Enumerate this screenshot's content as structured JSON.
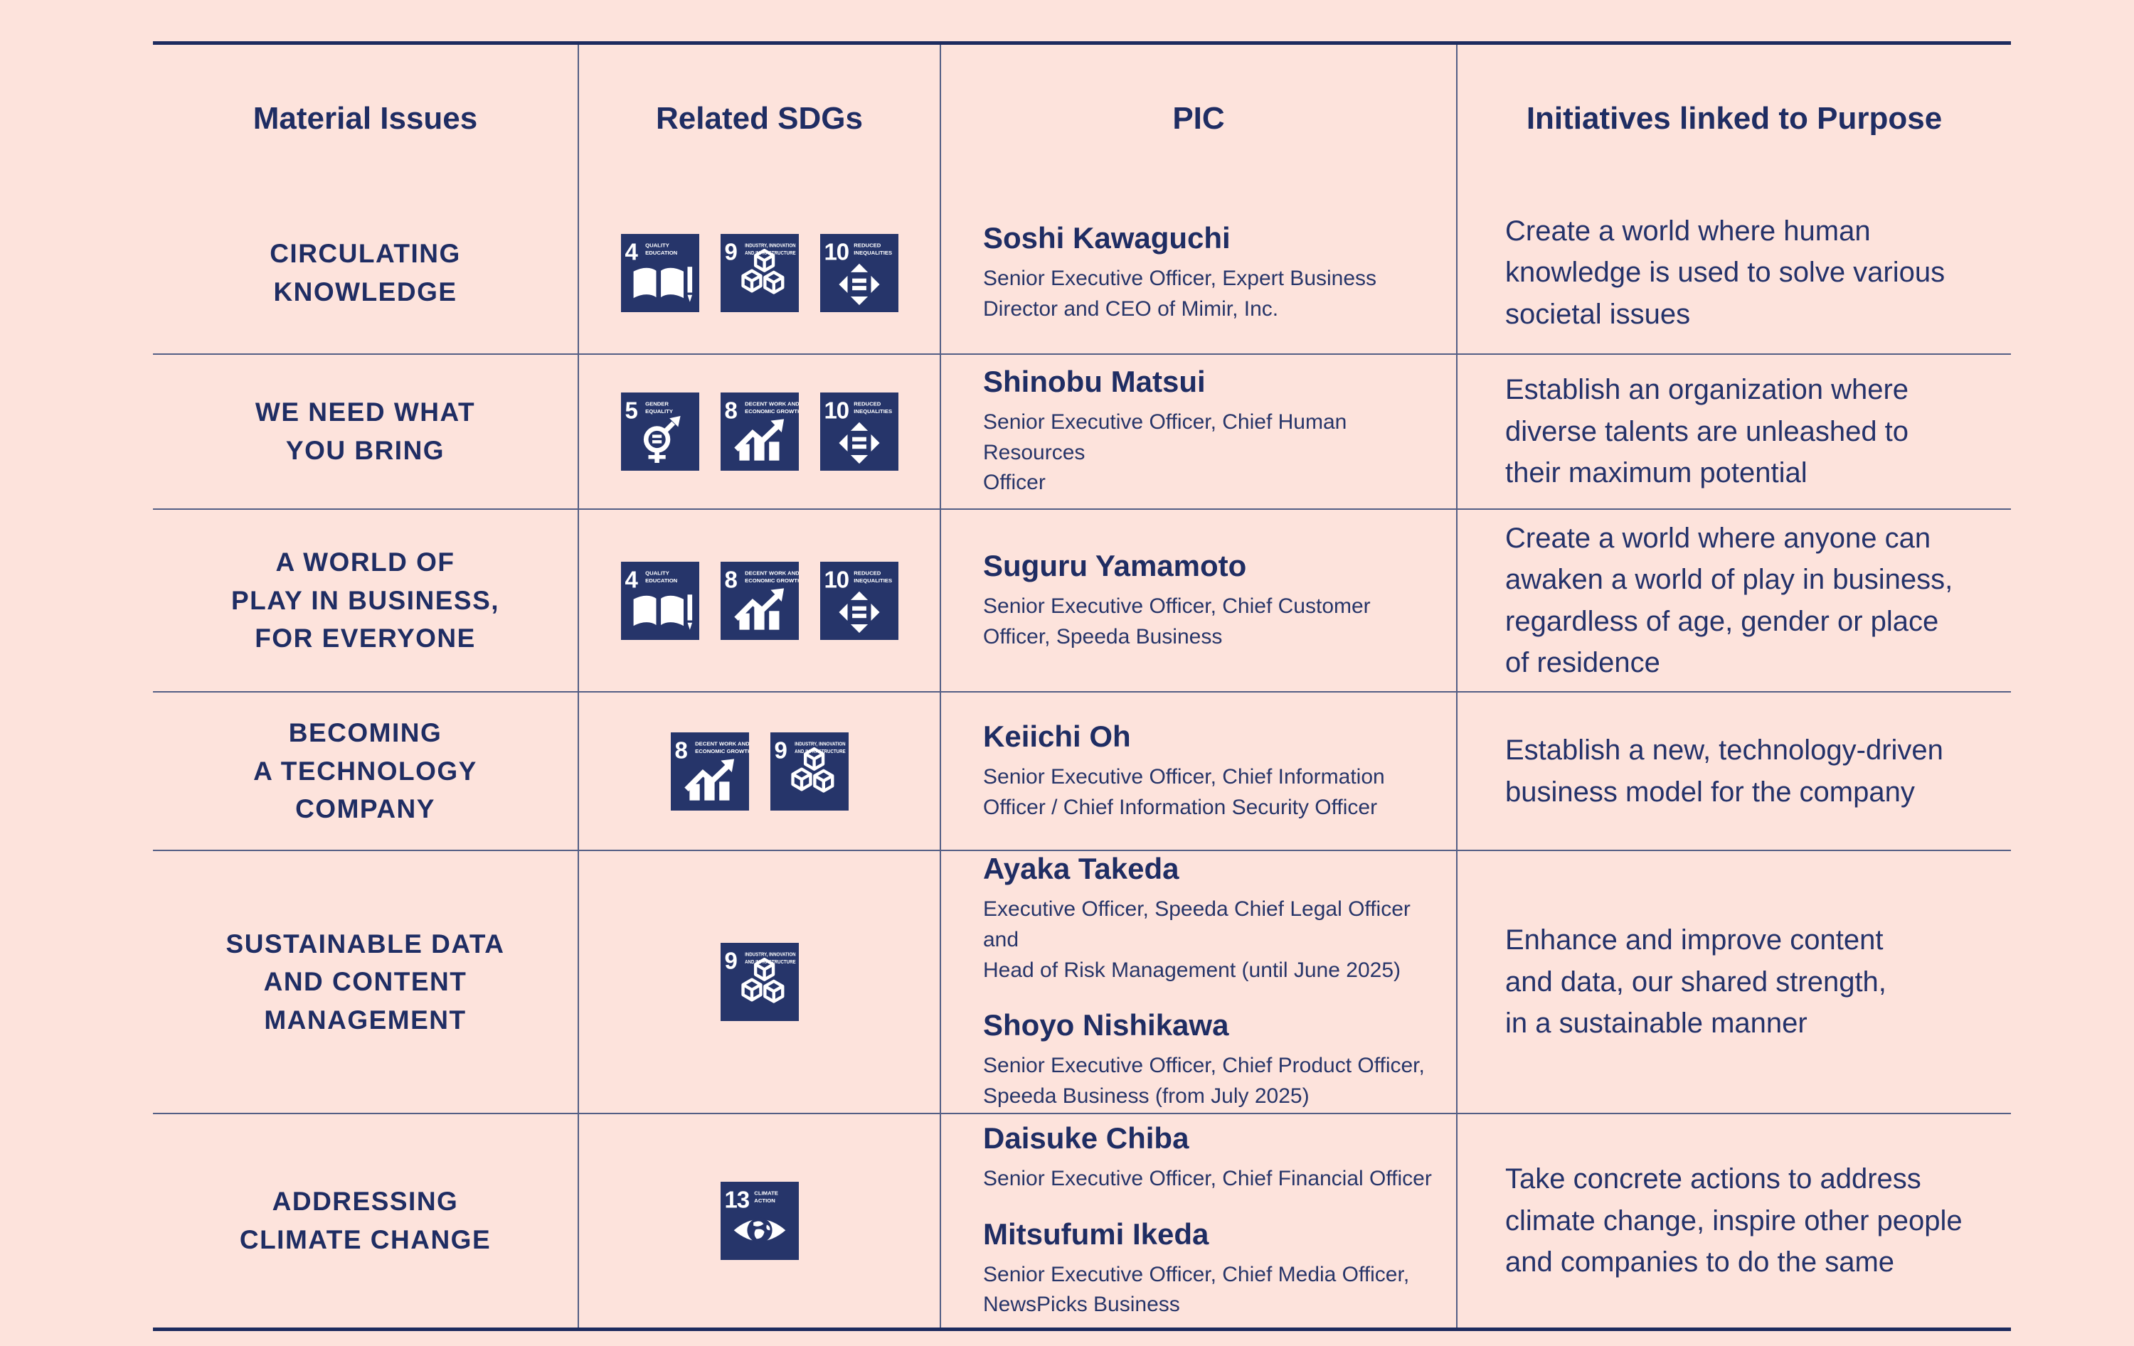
{
  "colors": {
    "background": "#fde3dc",
    "navy_text": "#1f2d63",
    "grid_line": "#535e85",
    "outer_border": "#1d2b5e",
    "sdg_square": "#26356a"
  },
  "table": {
    "headers": [
      "Material Issues",
      "Related SDGs",
      "PIC",
      "Initiatives linked to Purpose"
    ],
    "sdg_icons": {
      "4": {
        "num": "4",
        "label_lines": [
          "QUALITY",
          "EDUCATION"
        ],
        "glyph": "book-pencil-icon"
      },
      "5": {
        "num": "5",
        "label_lines": [
          "GENDER",
          "EQUALITY"
        ],
        "glyph": "gender-equality-icon"
      },
      "8": {
        "num": "8",
        "label_lines": [
          "DECENT WORK AND",
          "ECONOMIC GROWTH"
        ],
        "glyph": "growth-chart-icon"
      },
      "9": {
        "num": "9",
        "label_lines": [
          "INDUSTRY, INNOVATION",
          "AND INFRASTRUCTURE"
        ],
        "glyph": "cubes-icon"
      },
      "10": {
        "num": "10",
        "label_lines": [
          "REDUCED",
          "INEQUALITIES"
        ],
        "glyph": "equality-arrows-icon"
      },
      "13": {
        "num": "13",
        "label_lines": [
          "CLIMATE",
          "ACTION"
        ],
        "glyph": "eye-globe-icon"
      }
    },
    "rows": [
      {
        "material_lines": [
          "CIRCULATING",
          "KNOWLEDGE"
        ],
        "sdgs": [
          "4",
          "9",
          "10"
        ],
        "pics": [
          {
            "name": "Soshi Kawaguchi",
            "title_lines": [
              "Senior Executive Officer, Expert Business",
              "Director and CEO of Mimir, Inc."
            ]
          }
        ],
        "initiative_lines": [
          "Create a world where human",
          "knowledge is used to solve various",
          "societal issues"
        ]
      },
      {
        "material_lines": [
          "WE NEED WHAT",
          "YOU BRING"
        ],
        "sdgs": [
          "5",
          "8",
          "10"
        ],
        "pics": [
          {
            "name": "Shinobu Matsui",
            "title_lines": [
              "Senior Executive Officer, Chief Human Resources",
              "Officer"
            ]
          }
        ],
        "initiative_lines": [
          "Establish an organization where",
          "diverse talents are unleashed to",
          "their maximum potential"
        ]
      },
      {
        "material_lines": [
          "A WORLD OF",
          "PLAY IN BUSINESS,",
          "FOR EVERYONE"
        ],
        "sdgs": [
          "4",
          "8",
          "10"
        ],
        "pics": [
          {
            "name": "Suguru Yamamoto",
            "title_lines": [
              "Senior Executive Officer, Chief Customer",
              "Officer, Speeda Business"
            ]
          }
        ],
        "initiative_lines": [
          "Create a world where anyone can",
          "awaken a world of play in business,",
          "regardless of age, gender or place",
          "of residence"
        ]
      },
      {
        "material_lines": [
          "BECOMING",
          "A TECHNOLOGY",
          "COMPANY"
        ],
        "sdgs": [
          "8",
          "9"
        ],
        "pics": [
          {
            "name": "Keiichi Oh",
            "title_lines": [
              "Senior Executive Officer, Chief Information",
              "Officer / Chief Information Security Officer"
            ]
          }
        ],
        "initiative_lines": [
          "Establish a new, technology-driven",
          "business model for the company"
        ]
      },
      {
        "material_lines": [
          "SUSTAINABLE DATA",
          "AND CONTENT",
          "MANAGEMENT"
        ],
        "sdgs": [
          "9"
        ],
        "pics": [
          {
            "name": "Ayaka Takeda",
            "title_lines": [
              "Executive Officer, Speeda Chief Legal Officer and",
              "Head of Risk Management (until June 2025)"
            ]
          },
          {
            "name": "Shoyo Nishikawa",
            "title_lines": [
              "Senior Executive Officer, Chief Product Officer,",
              "Speeda Business (from July 2025)"
            ]
          }
        ],
        "initiative_lines": [
          "Enhance and improve content",
          "and data, our shared strength,",
          "in a sustainable manner"
        ]
      },
      {
        "material_lines": [
          "ADDRESSING",
          "CLIMATE CHANGE"
        ],
        "sdgs": [
          "13"
        ],
        "pics": [
          {
            "name": "Daisuke Chiba",
            "title_lines": [
              "Senior Executive Officer, Chief Financial Officer"
            ]
          },
          {
            "name": "Mitsufumi Ikeda",
            "title_lines": [
              "Senior Executive Officer, Chief Media Officer,",
              "NewsPicks Business"
            ]
          }
        ],
        "initiative_lines": [
          "Take concrete actions to address",
          "climate change, inspire other people",
          "and companies to do the same"
        ]
      }
    ]
  }
}
